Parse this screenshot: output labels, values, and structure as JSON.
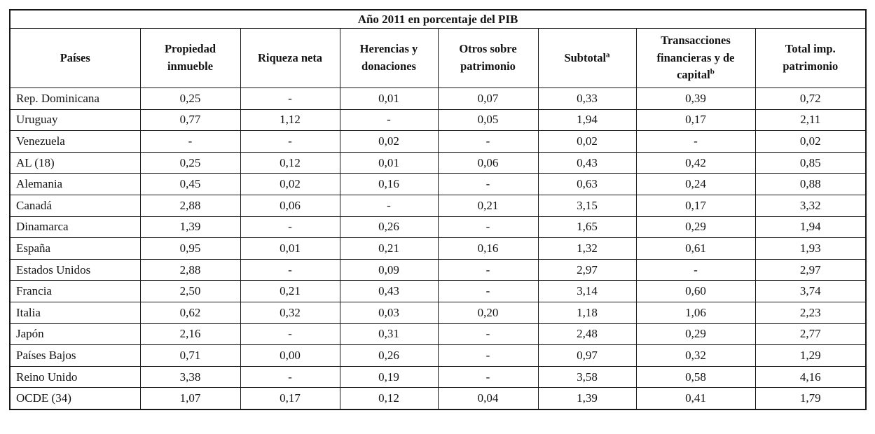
{
  "table": {
    "title": "Año 2011 en porcentaje del PIB",
    "columns": [
      {
        "key": "paises",
        "label": "Países",
        "sup": ""
      },
      {
        "key": "propiedad",
        "label": "Propiedad\ninmueble",
        "sup": ""
      },
      {
        "key": "riqueza",
        "label": "Riqueza neta",
        "sup": ""
      },
      {
        "key": "herencias",
        "label": "Herencias y\ndonaciones",
        "sup": ""
      },
      {
        "key": "otros",
        "label": "Otros sobre\npatrimonio",
        "sup": ""
      },
      {
        "key": "subtotal",
        "label": "Subtotal",
        "sup": "a"
      },
      {
        "key": "transacciones",
        "label": "Transacciones\nfinancieras y de\ncapital",
        "sup": "b"
      },
      {
        "key": "total",
        "label": "Total imp.\npatrimonio",
        "sup": ""
      }
    ],
    "rows": [
      {
        "country": "Rep. Dominicana",
        "values": [
          "0,25",
          "-",
          "0,01",
          "0,07",
          "0,33",
          "0,39",
          "0,72"
        ]
      },
      {
        "country": "Uruguay",
        "values": [
          "0,77",
          "1,12",
          "-",
          "0,05",
          "1,94",
          "0,17",
          "2,11"
        ]
      },
      {
        "country": "Venezuela",
        "values": [
          "-",
          "-",
          "0,02",
          "-",
          "0,02",
          "-",
          "0,02"
        ]
      },
      {
        "country": "AL (18)",
        "values": [
          "0,25",
          "0,12",
          "0,01",
          "0,06",
          "0,43",
          "0,42",
          "0,85"
        ]
      },
      {
        "country": "Alemania",
        "values": [
          "0,45",
          "0,02",
          "0,16",
          "-",
          "0,63",
          "0,24",
          "0,88"
        ]
      },
      {
        "country": "Canadá",
        "values": [
          "2,88",
          "0,06",
          "-",
          "0,21",
          "3,15",
          "0,17",
          "3,32"
        ]
      },
      {
        "country": "Dinamarca",
        "values": [
          "1,39",
          "-",
          "0,26",
          "-",
          "1,65",
          "0,29",
          "1,94"
        ]
      },
      {
        "country": "España",
        "values": [
          "0,95",
          "0,01",
          "0,21",
          "0,16",
          "1,32",
          "0,61",
          "1,93"
        ]
      },
      {
        "country": "Estados Unidos",
        "values": [
          "2,88",
          "-",
          "0,09",
          "-",
          "2,97",
          "-",
          "2,97"
        ]
      },
      {
        "country": "Francia",
        "values": [
          "2,50",
          "0,21",
          "0,43",
          "-",
          "3,14",
          "0,60",
          "3,74"
        ]
      },
      {
        "country": "Italia",
        "values": [
          "0,62",
          "0,32",
          "0,03",
          "0,20",
          "1,18",
          "1,06",
          "2,23"
        ]
      },
      {
        "country": "Japón",
        "values": [
          "2,16",
          "-",
          "0,31",
          "-",
          "2,48",
          "0,29",
          "2,77"
        ]
      },
      {
        "country": "Países Bajos",
        "values": [
          "0,71",
          "0,00",
          "0,26",
          "-",
          "0,97",
          "0,32",
          "1,29"
        ]
      },
      {
        "country": "Reino Unido",
        "values": [
          "3,38",
          "-",
          "0,19",
          "-",
          "3,58",
          "0,58",
          "4,16"
        ]
      },
      {
        "country": "OCDE (34)",
        "values": [
          "1,07",
          "0,17",
          "0,12",
          "0,04",
          "1,39",
          "0,41",
          "1,79"
        ]
      }
    ]
  },
  "chart_data": {
    "type": "table",
    "title": "Año 2011 en porcentaje del PIB",
    "columns": [
      "Países",
      "Propiedad inmueble",
      "Riqueza neta",
      "Herencias y donaciones",
      "Otros sobre patrimonio",
      "Subtotal(a)",
      "Transacciones financieras y de capital(b)",
      "Total imp. patrimonio"
    ],
    "rows": [
      [
        "Rep. Dominicana",
        "0,25",
        "-",
        "0,01",
        "0,07",
        "0,33",
        "0,39",
        "0,72"
      ],
      [
        "Uruguay",
        "0,77",
        "1,12",
        "-",
        "0,05",
        "1,94",
        "0,17",
        "2,11"
      ],
      [
        "Venezuela",
        "-",
        "-",
        "0,02",
        "-",
        "0,02",
        "-",
        "0,02"
      ],
      [
        "AL (18)",
        "0,25",
        "0,12",
        "0,01",
        "0,06",
        "0,43",
        "0,42",
        "0,85"
      ],
      [
        "Alemania",
        "0,45",
        "0,02",
        "0,16",
        "-",
        "0,63",
        "0,24",
        "0,88"
      ],
      [
        "Canadá",
        "2,88",
        "0,06",
        "-",
        "0,21",
        "3,15",
        "0,17",
        "3,32"
      ],
      [
        "Dinamarca",
        "1,39",
        "-",
        "0,26",
        "-",
        "1,65",
        "0,29",
        "1,94"
      ],
      [
        "España",
        "0,95",
        "0,01",
        "0,21",
        "0,16",
        "1,32",
        "0,61",
        "1,93"
      ],
      [
        "Estados Unidos",
        "2,88",
        "-",
        "0,09",
        "-",
        "2,97",
        "-",
        "2,97"
      ],
      [
        "Francia",
        "2,50",
        "0,21",
        "0,43",
        "-",
        "3,14",
        "0,60",
        "3,74"
      ],
      [
        "Italia",
        "0,62",
        "0,32",
        "0,03",
        "0,20",
        "1,18",
        "1,06",
        "2,23"
      ],
      [
        "Japón",
        "2,16",
        "-",
        "0,31",
        "-",
        "2,48",
        "0,29",
        "2,77"
      ],
      [
        "Países Bajos",
        "0,71",
        "0,00",
        "0,26",
        "-",
        "0,97",
        "0,32",
        "1,29"
      ],
      [
        "Reino Unido",
        "3,38",
        "-",
        "0,19",
        "-",
        "3,58",
        "0,58",
        "4,16"
      ],
      [
        "OCDE (34)",
        "1,07",
        "0,17",
        "0,12",
        "0,04",
        "1,39",
        "0,41",
        "1,79"
      ]
    ]
  }
}
